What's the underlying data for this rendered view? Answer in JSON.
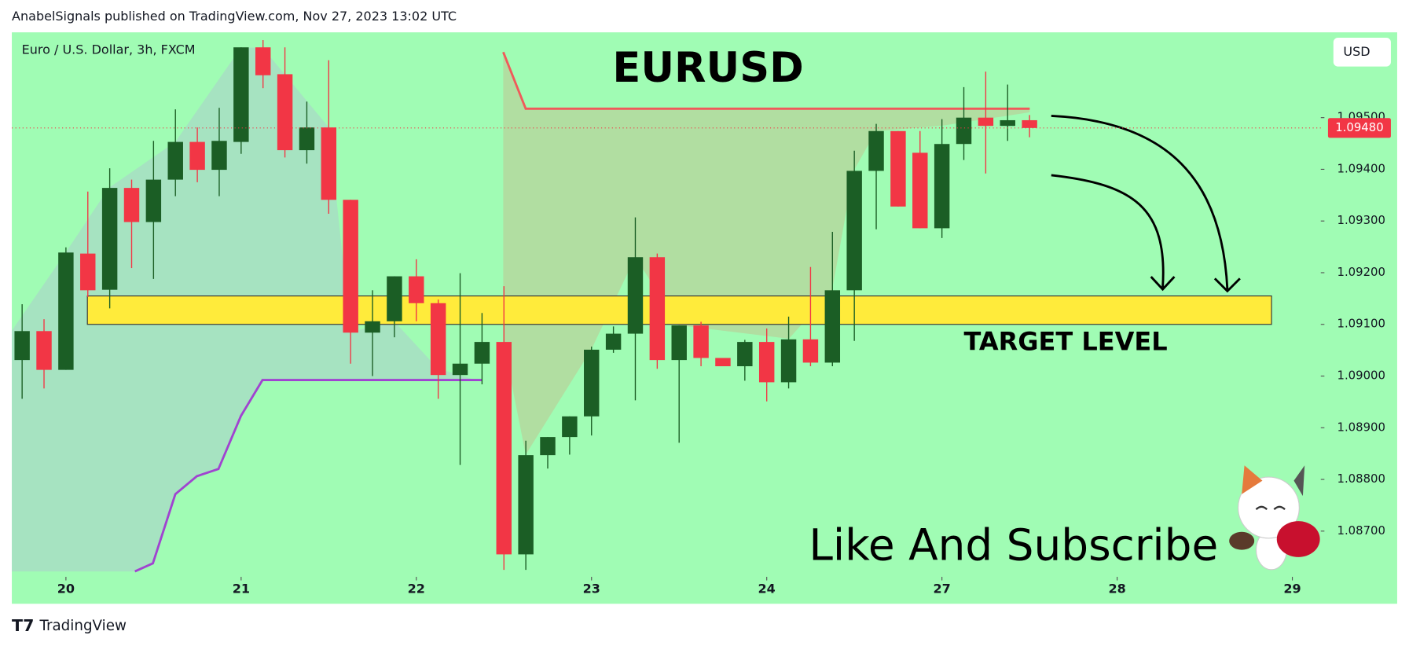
{
  "header": {
    "text": "AnabelSignals published on TradingView.com, Nov 27, 2023 13:02 UTC"
  },
  "footer": {
    "logo": "TradingView"
  },
  "chart_data": {
    "type": "candlestick",
    "title": "EURUSD",
    "subtitle": "Euro / U.S. Dollar, 3h, FXCM",
    "currency": "USD",
    "up_color": "#1b5e25",
    "down_color": "#f23645",
    "background": "#a0fcb4",
    "x": [
      0,
      1,
      2,
      3,
      4,
      5,
      6,
      7,
      8,
      9,
      10,
      11,
      12,
      13,
      14,
      15,
      16,
      17,
      18,
      19,
      20,
      21,
      22,
      23,
      24,
      25,
      26,
      27,
      28,
      29,
      30,
      31,
      32,
      33,
      34,
      35,
      36,
      37,
      38,
      39,
      40,
      41,
      42,
      43,
      44,
      45,
      46
    ],
    "open": [
      1.09031,
      1.09087,
      1.09012,
      1.09237,
      1.09167,
      1.09364,
      1.09298,
      1.0938,
      1.09453,
      1.09399,
      1.09453,
      1.09636,
      1.09584,
      1.09437,
      1.09481,
      1.09341,
      1.09084,
      1.09106,
      1.09193,
      1.09141,
      1.09002,
      1.09024,
      1.09066,
      1.08655,
      1.08847,
      1.08882,
      1.08922,
      1.09051,
      1.09082,
      1.0923,
      1.09031,
      1.09098,
      1.09035,
      1.09019,
      1.09066,
      1.08988,
      1.09071,
      1.09026,
      1.09166,
      1.09397,
      1.09474,
      1.09432,
      1.09286,
      1.09449,
      1.095,
      1.09484,
      1.09495
    ],
    "high": [
      1.09139,
      1.0911,
      1.09249,
      1.09357,
      1.09402,
      1.0938,
      1.09455,
      1.09516,
      1.09481,
      1.09519,
      1.09636,
      1.0965,
      1.09636,
      1.09531,
      1.09611,
      1.09341,
      1.09166,
      1.09193,
      1.09226,
      1.09148,
      1.09199,
      1.09122,
      1.09174,
      1.08875,
      1.08882,
      1.08922,
      1.09057,
      1.09096,
      1.09307,
      1.09237,
      1.09098,
      1.09105,
      1.09035,
      1.0907,
      1.09092,
      1.09115,
      1.09211,
      1.09279,
      1.09436,
      1.09488,
      1.09474,
      1.09474,
      1.09497,
      1.09559,
      1.09589,
      1.09564,
      1.09505
    ],
    "low": [
      1.08956,
      1.08976,
      1.09012,
      1.09153,
      1.09131,
      1.09209,
      1.09188,
      1.09348,
      1.09375,
      1.09348,
      1.0943,
      1.09557,
      1.09423,
      1.09411,
      1.09314,
      1.09024,
      1.09,
      1.09075,
      1.09106,
      1.08956,
      1.08828,
      1.08984,
      1.08625,
      1.08625,
      1.08821,
      1.08848,
      1.08885,
      1.09045,
      1.08953,
      1.09014,
      1.08871,
      1.09019,
      1.09019,
      1.08991,
      1.08951,
      1.08976,
      1.09019,
      1.09019,
      1.09068,
      1.09284,
      1.09328,
      1.09286,
      1.09267,
      1.09418,
      1.09392,
      1.09455,
      1.09462
    ],
    "close": [
      1.09087,
      1.09012,
      1.09239,
      1.09166,
      1.09364,
      1.09298,
      1.0938,
      1.09453,
      1.09399,
      1.09455,
      1.09636,
      1.09582,
      1.09437,
      1.09481,
      1.09341,
      1.09084,
      1.09106,
      1.09193,
      1.09141,
      1.09002,
      1.09024,
      1.09066,
      1.08655,
      1.08847,
      1.08882,
      1.08922,
      1.09051,
      1.09082,
      1.0923,
      1.09031,
      1.09098,
      1.09035,
      1.09019,
      1.09066,
      1.08988,
      1.09071,
      1.09026,
      1.09166,
      1.09397,
      1.09474,
      1.09328,
      1.09286,
      1.09449,
      1.095,
      1.09484,
      1.09495,
      1.0948
    ],
    "xlim": [
      -0.47,
      59.3
    ],
    "ylim": [
      1.08622,
      1.09665
    ],
    "xticks": [
      {
        "value": 2,
        "label": "20"
      },
      {
        "value": 10,
        "label": "21"
      },
      {
        "value": 18,
        "label": "22"
      },
      {
        "value": 26,
        "label": "23"
      },
      {
        "value": 34,
        "label": "24"
      },
      {
        "value": 42,
        "label": "27"
      },
      {
        "value": 50,
        "label": "28"
      },
      {
        "value": 58,
        "label": "29"
      }
    ],
    "yticks": [
      {
        "value": 1.087,
        "label": "1.08700"
      },
      {
        "value": 1.088,
        "label": "1.08800"
      },
      {
        "value": 1.089,
        "label": "1.08900"
      },
      {
        "value": 1.09,
        "label": "1.09000"
      },
      {
        "value": 1.091,
        "label": "1.09100"
      },
      {
        "value": 1.092,
        "label": "1.09200"
      },
      {
        "value": 1.093,
        "label": "1.09300"
      },
      {
        "value": 1.094,
        "label": "1.09400"
      },
      {
        "value": 1.095,
        "label": "1.09500"
      }
    ],
    "last_price": {
      "value": 1.0948,
      "label": "1.09480"
    },
    "zone": {
      "from": 1.091,
      "to": 1.09155,
      "x": [
        2.98,
        57.05
      ],
      "color": "#ffeb3b",
      "label": "TARGET LEVEL"
    },
    "annotation": "Like And Subscribe"
  }
}
